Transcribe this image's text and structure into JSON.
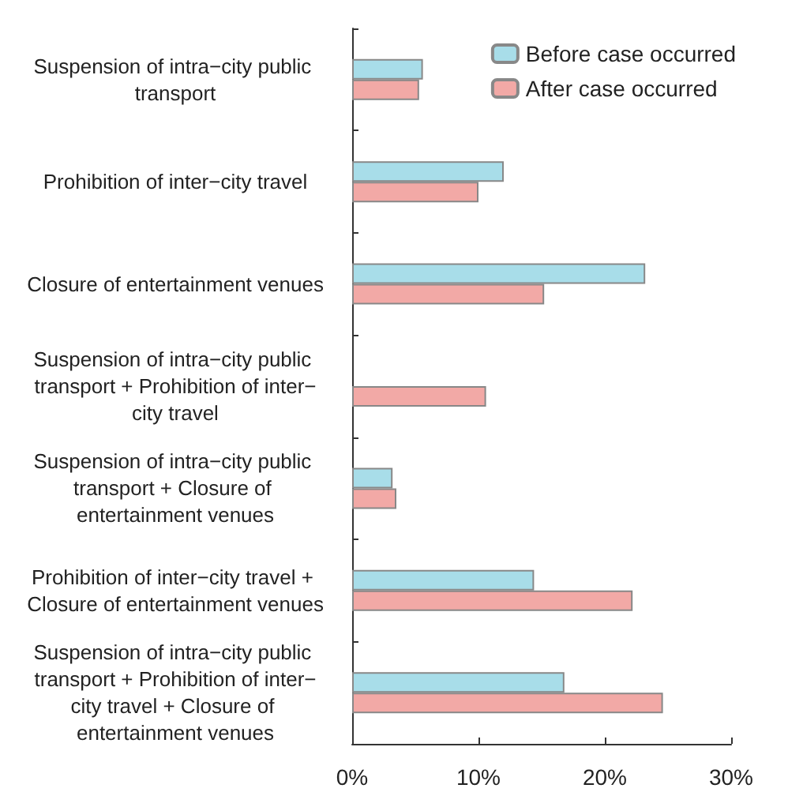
{
  "chart_data": {
    "type": "bar",
    "orientation": "horizontal",
    "categories": [
      "Suspension of intra−city public transport",
      "Prohibition of inter−city travel",
      "Closure of entertainment venues",
      "Suspension of intra−city public transport + Prohibition of inter−city travel",
      "Suspension of intra−city public transport + Closure of entertainment venues",
      "Prohibition of inter−city travel + Closure of entertainment venues",
      "Suspension of intra−city public transport + Prohibition of inter−city travel + Closure of entertainment venues"
    ],
    "series": [
      {
        "name": "Before case occurred",
        "color": "#a8dde9",
        "values": [
          5.6,
          12.0,
          23.2,
          null,
          3.2,
          14.4,
          16.8
        ]
      },
      {
        "name": "After case occurred",
        "color": "#f2a9a6",
        "values": [
          5.3,
          10.0,
          15.2,
          10.6,
          3.5,
          22.2,
          24.6
        ]
      }
    ],
    "xlim": [
      0,
      30
    ],
    "xticks": [
      {
        "value": 0,
        "label": "0%"
      },
      {
        "value": 10,
        "label": "10%"
      },
      {
        "value": 20,
        "label": "20%"
      },
      {
        "value": 30,
        "label": "30%"
      }
    ],
    "grid": false,
    "legend": "top right"
  }
}
